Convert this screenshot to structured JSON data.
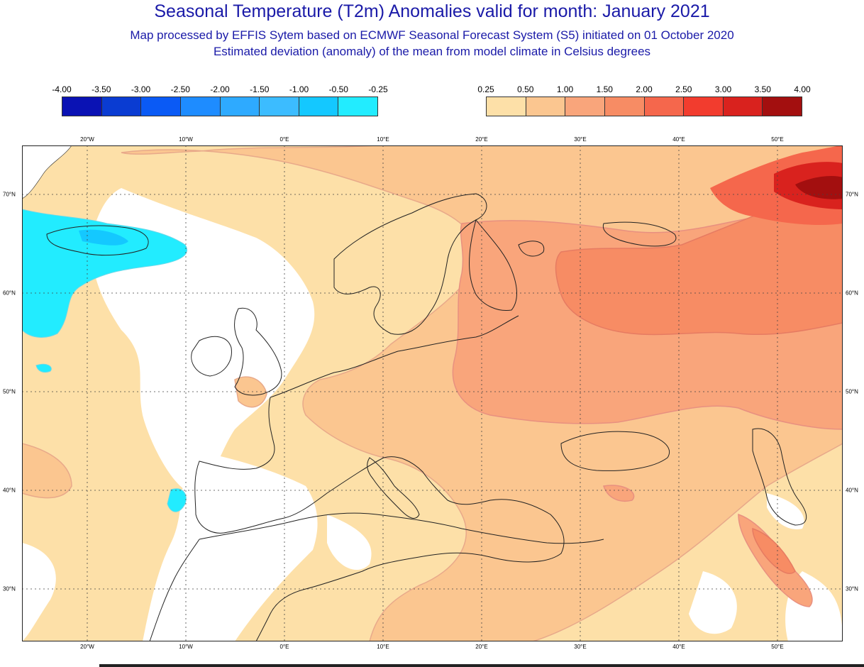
{
  "title": "Seasonal Temperature (T2m) Anomalies valid for month: January 2021",
  "subtitle1": "Map processed by EFFIS Sytem based on ECMWF Seasonal Forecast System (S5) initiated on 01 October 2020",
  "subtitle2": "Estimated deviation (anomaly) of the mean from model climate in Celsius degrees",
  "legend": {
    "negative": {
      "labels": [
        "-4.00",
        "-3.50",
        "-3.00",
        "-2.50",
        "-2.00",
        "-1.50",
        "-1.00",
        "-0.50",
        "-0.25"
      ],
      "colors": [
        "#0a12b4",
        "#0a3cd2",
        "#0a5af5",
        "#1e8cff",
        "#2eaaff",
        "#3cbcff",
        "#14c8ff",
        "#22ecff"
      ]
    },
    "positive": {
      "labels": [
        "0.25",
        "0.50",
        "1.00",
        "1.50",
        "2.00",
        "2.50",
        "3.00",
        "3.50",
        "4.00"
      ],
      "colors": [
        "#fde0a8",
        "#fbc690",
        "#f9a57b",
        "#f78c64",
        "#f5674c",
        "#f23c2e",
        "#d9221e",
        "#a30f0f"
      ]
    }
  },
  "axes": {
    "lon_labels": [
      "20°W",
      "10°W",
      "0°E",
      "10°E",
      "20°E",
      "30°E",
      "40°E",
      "50°E"
    ],
    "lat_labels": [
      "70°N",
      "60°N",
      "50°N",
      "40°N",
      "30°N"
    ]
  }
}
